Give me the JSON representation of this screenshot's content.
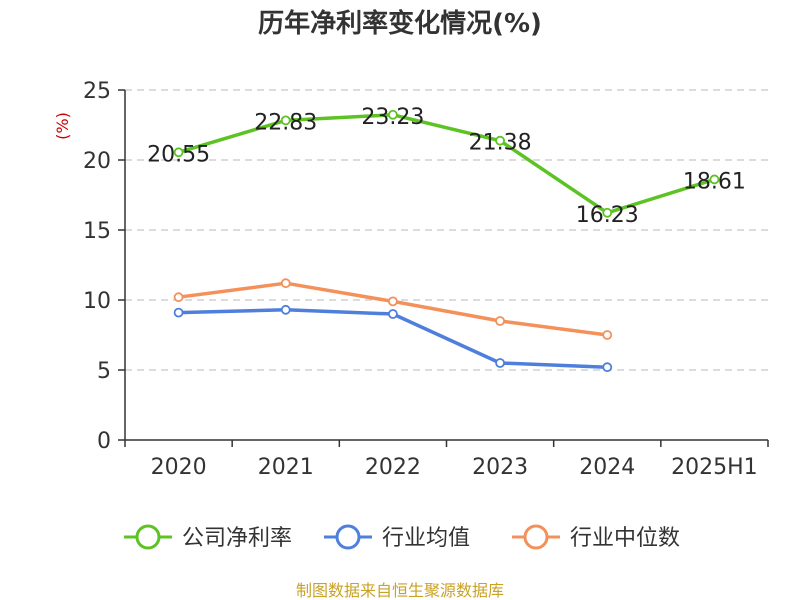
{
  "chart_data": {
    "type": "line",
    "title": "历年净利率变化情况(%)",
    "ylabel": "(%)",
    "xlabel": "",
    "categories": [
      "2020",
      "2021",
      "2022",
      "2023",
      "2024",
      "2025H1"
    ],
    "ylim": [
      0,
      25
    ],
    "yticks": [
      0,
      5,
      10,
      15,
      20,
      25
    ],
    "grid": true,
    "legend_position": "bottom",
    "series": [
      {
        "name": "公司净利率",
        "color": "#5cc323",
        "values": [
          20.55,
          22.83,
          23.23,
          21.38,
          16.23,
          18.61
        ],
        "labels": [
          "20.55",
          "22.83",
          "23.23",
          "21.38",
          "16.23",
          "18.61"
        ]
      },
      {
        "name": "行业均值",
        "color": "#4f7fdc",
        "values": [
          9.1,
          9.3,
          9.0,
          5.5,
          5.2,
          null
        ]
      },
      {
        "name": "行业中位数",
        "color": "#f4905a",
        "values": [
          10.2,
          11.2,
          9.9,
          8.5,
          7.5,
          null
        ]
      }
    ],
    "source": "制图数据来自恒生聚源数据库"
  }
}
